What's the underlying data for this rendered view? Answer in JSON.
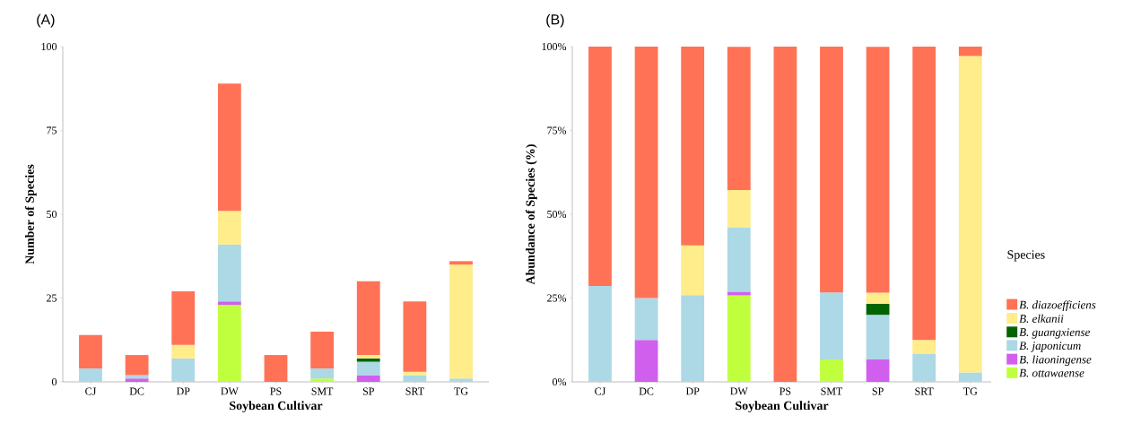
{
  "chart_data": [
    {
      "type": "bar",
      "title": "(A)",
      "stacked": true,
      "xlabel": "Soybean Cultivar",
      "ylabel": "Number of Species",
      "categories": [
        "CJ",
        "DC",
        "DP",
        "DW",
        "PS",
        "SMT",
        "SP",
        "SRT",
        "TG"
      ],
      "ylim": [
        0,
        100
      ],
      "yticks": [
        0,
        25,
        50,
        75,
        100
      ],
      "grid": false,
      "legend": false,
      "series": [
        {
          "color": "#c0ff3e",
          "values": [
            0,
            0,
            0,
            23,
            0,
            1,
            0,
            0,
            0
          ]
        },
        {
          "color": "#d15fee",
          "values": [
            0,
            1,
            0,
            1,
            0,
            0,
            2,
            0,
            0
          ]
        },
        {
          "color": "#add8e6",
          "values": [
            4,
            1,
            7,
            17,
            0,
            3,
            4,
            2,
            1
          ]
        },
        {
          "color": "#006400",
          "values": [
            0,
            0,
            0,
            0,
            0,
            0,
            1,
            0,
            0
          ]
        },
        {
          "color": "#ffec8b",
          "values": [
            0,
            0,
            4,
            10,
            0,
            0,
            1,
            1,
            34
          ]
        },
        {
          "color": "#ff7256",
          "values": [
            10,
            6,
            16,
            38,
            8,
            11,
            22,
            21,
            1
          ]
        }
      ]
    },
    {
      "type": "bar",
      "title": "(B)",
      "stacked": true,
      "xlabel": "Soybean Cultivar",
      "ylabel": "Abundance of Species (%)",
      "legend_title": "Species",
      "categories": [
        "CJ",
        "DC",
        "DP",
        "DW",
        "PS",
        "SMT",
        "SP",
        "SRT",
        "TG"
      ],
      "ylim": [
        0,
        100
      ],
      "yticks": [
        {
          "value": 0,
          "label": "0%"
        },
        {
          "value": 25,
          "label": "25%"
        },
        {
          "value": 50,
          "label": "50%"
        },
        {
          "value": 75,
          "label": "75%"
        },
        {
          "value": 100,
          "label": "100%"
        }
      ],
      "grid": false,
      "legend": "right",
      "series": [
        {
          "name": "B. ottawaense",
          "color": "#c0ff3e",
          "values": [
            0,
            0,
            0,
            25.8,
            0,
            6.7,
            0,
            0,
            0
          ]
        },
        {
          "name": "B. liaoningense",
          "color": "#d15fee",
          "values": [
            0,
            12.5,
            0,
            1.1,
            0,
            0,
            6.7,
            0,
            0
          ]
        },
        {
          "name": "B. japonicum",
          "color": "#add8e6",
          "values": [
            28.6,
            12.5,
            25.9,
            19.1,
            0,
            20,
            13.3,
            8.3,
            2.8
          ]
        },
        {
          "name": "B. guangxiense",
          "color": "#006400",
          "values": [
            0,
            0,
            0,
            0,
            0,
            0,
            3.3,
            0,
            0
          ]
        },
        {
          "name": "B. elkanii",
          "color": "#ffec8b",
          "values": [
            0,
            0,
            14.8,
            11.2,
            0,
            0,
            3.3,
            4.2,
            94.4
          ]
        },
        {
          "name": "B. diazoefficiens",
          "color": "#ff7256",
          "values": [
            71.4,
            75,
            59.3,
            42.7,
            100,
            73.3,
            73.3,
            87.5,
            2.8
          ]
        }
      ]
    }
  ]
}
